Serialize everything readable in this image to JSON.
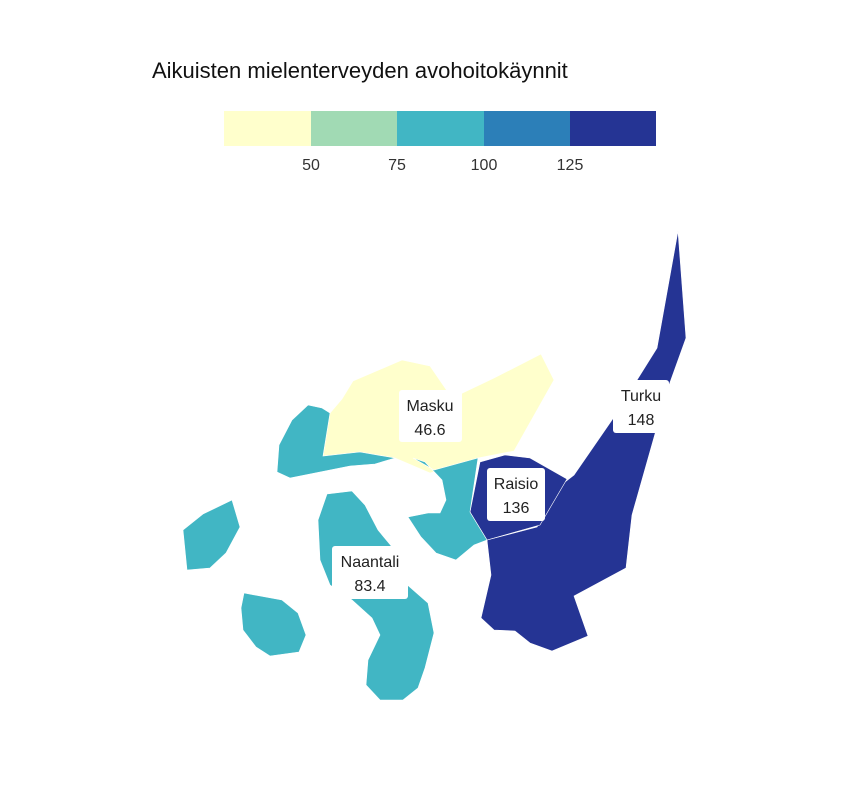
{
  "title": "Aikuisten mielenterveyden avohoitokäynnit",
  "legend": {
    "colors": [
      "#ffffcc",
      "#a1dab4",
      "#41b6c4",
      "#2c7fb8",
      "#253494"
    ],
    "ticks": [
      "50",
      "75",
      "100",
      "125"
    ]
  },
  "municipalities": [
    {
      "name": "Masku",
      "value": "46.6",
      "color": "#ffffcc"
    },
    {
      "name": "Naantali",
      "value": "83.4",
      "color": "#41b6c4"
    },
    {
      "name": "Raisio",
      "value": "136",
      "color": "#253494"
    },
    {
      "name": "Turku",
      "value": "148",
      "color": "#253494"
    }
  ]
}
